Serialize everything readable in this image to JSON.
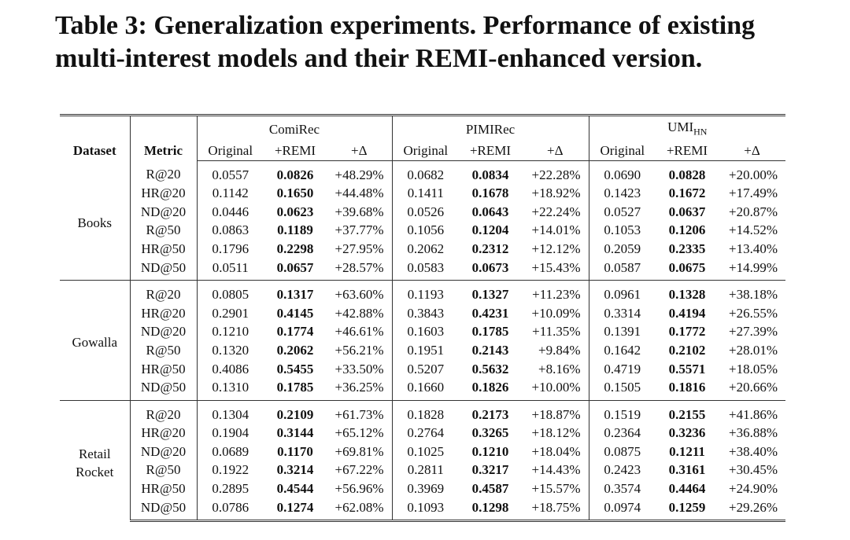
{
  "title": "Table 3: Generalization experiments. Performance of existing multi-interest models and their REMI-enhanced version.",
  "table": {
    "dataset_label": "Dataset",
    "metric_label": "Metric",
    "models": [
      {
        "name": "ComiRec",
        "columns": [
          "Original",
          "+REMI",
          "+Δ"
        ]
      },
      {
        "name": "PIMIRec",
        "columns": [
          "Original",
          "+REMI",
          "+Δ"
        ]
      },
      {
        "name": "UMI",
        "subscript": "HN",
        "columns": [
          "Original",
          "+REMI",
          "+Δ"
        ]
      }
    ],
    "groups": [
      {
        "dataset": "Books",
        "rows": [
          {
            "metric": "R@20",
            "values": [
              "0.0557",
              "0.0826",
              "+48.29%",
              "0.0682",
              "0.0834",
              "+22.28%",
              "0.0690",
              "0.0828",
              "+20.00%"
            ]
          },
          {
            "metric": "HR@20",
            "values": [
              "0.1142",
              "0.1650",
              "+44.48%",
              "0.1411",
              "0.1678",
              "+18.92%",
              "0.1423",
              "0.1672",
              "+17.49%"
            ]
          },
          {
            "metric": "ND@20",
            "values": [
              "0.0446",
              "0.0623",
              "+39.68%",
              "0.0526",
              "0.0643",
              "+22.24%",
              "0.0527",
              "0.0637",
              "+20.87%"
            ]
          },
          {
            "metric": "R@50",
            "values": [
              "0.0863",
              "0.1189",
              "+37.77%",
              "0.1056",
              "0.1204",
              "+14.01%",
              "0.1053",
              "0.1206",
              "+14.52%"
            ]
          },
          {
            "metric": "HR@50",
            "values": [
              "0.1796",
              "0.2298",
              "+27.95%",
              "0.2062",
              "0.2312",
              "+12.12%",
              "0.2059",
              "0.2335",
              "+13.40%"
            ]
          },
          {
            "metric": "ND@50",
            "values": [
              "0.0511",
              "0.0657",
              "+28.57%",
              "0.0583",
              "0.0673",
              "+15.43%",
              "0.0587",
              "0.0675",
              "+14.99%"
            ]
          }
        ]
      },
      {
        "dataset": "Gowalla",
        "rows": [
          {
            "metric": "R@20",
            "values": [
              "0.0805",
              "0.1317",
              "+63.60%",
              "0.1193",
              "0.1327",
              "+11.23%",
              "0.0961",
              "0.1328",
              "+38.18%"
            ]
          },
          {
            "metric": "HR@20",
            "values": [
              "0.2901",
              "0.4145",
              "+42.88%",
              "0.3843",
              "0.4231",
              "+10.09%",
              "0.3314",
              "0.4194",
              "+26.55%"
            ]
          },
          {
            "metric": "ND@20",
            "values": [
              "0.1210",
              "0.1774",
              "+46.61%",
              "0.1603",
              "0.1785",
              "+11.35%",
              "0.1391",
              "0.1772",
              "+27.39%"
            ]
          },
          {
            "metric": "R@50",
            "values": [
              "0.1320",
              "0.2062",
              "+56.21%",
              "0.1951",
              "0.2143",
              "+9.84%",
              "0.1642",
              "0.2102",
              "+28.01%"
            ]
          },
          {
            "metric": "HR@50",
            "values": [
              "0.4086",
              "0.5455",
              "+33.50%",
              "0.5207",
              "0.5632",
              "+8.16%",
              "0.4719",
              "0.5571",
              "+18.05%"
            ]
          },
          {
            "metric": "ND@50",
            "values": [
              "0.1310",
              "0.1785",
              "+36.25%",
              "0.1660",
              "0.1826",
              "+10.00%",
              "0.1505",
              "0.1816",
              "+20.66%"
            ]
          }
        ]
      },
      {
        "dataset": "Retail Rocket",
        "rows": [
          {
            "metric": "R@20",
            "values": [
              "0.1304",
              "0.2109",
              "+61.73%",
              "0.1828",
              "0.2173",
              "+18.87%",
              "0.1519",
              "0.2155",
              "+41.86%"
            ]
          },
          {
            "metric": "HR@20",
            "values": [
              "0.1904",
              "0.3144",
              "+65.12%",
              "0.2764",
              "0.3265",
              "+18.12%",
              "0.2364",
              "0.3236",
              "+36.88%"
            ]
          },
          {
            "metric": "ND@20",
            "values": [
              "0.0689",
              "0.1170",
              "+69.81%",
              "0.1025",
              "0.1210",
              "+18.04%",
              "0.0875",
              "0.1211",
              "+38.40%"
            ]
          },
          {
            "metric": "R@50",
            "values": [
              "0.1922",
              "0.3214",
              "+67.22%",
              "0.2811",
              "0.3217",
              "+14.43%",
              "0.2423",
              "0.3161",
              "+30.45%"
            ]
          },
          {
            "metric": "HR@50",
            "values": [
              "0.2895",
              "0.4544",
              "+56.96%",
              "0.3969",
              "0.4587",
              "+15.57%",
              "0.3574",
              "0.4464",
              "+24.90%"
            ]
          },
          {
            "metric": "ND@50",
            "values": [
              "0.0786",
              "0.1274",
              "+62.08%",
              "0.1093",
              "0.1298",
              "+18.75%",
              "0.0974",
              "0.1259",
              "+29.26%"
            ]
          }
        ]
      }
    ]
  }
}
